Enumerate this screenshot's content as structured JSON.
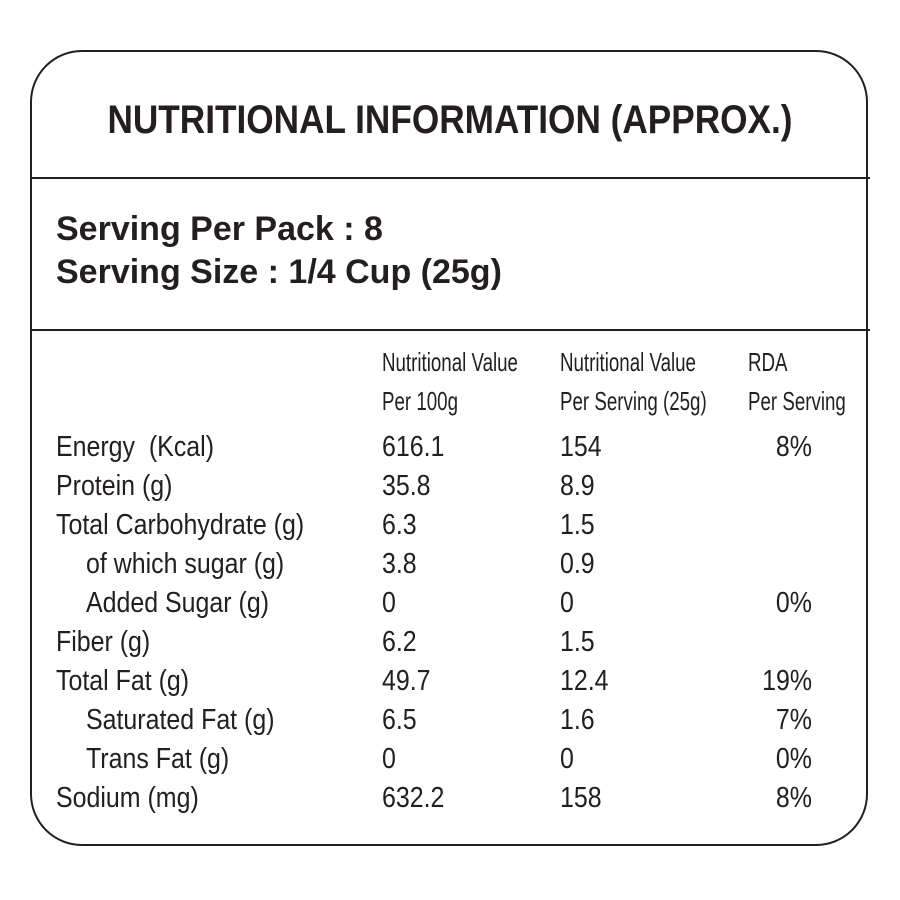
{
  "title": "NUTRITIONAL INFORMATION (APPROX.)",
  "serving": {
    "per_pack": "Serving Per Pack : 8",
    "size": "Serving Size : 1/4 Cup (25g)"
  },
  "table": {
    "headers": [
      [
        "Nutritional Value",
        "Per 100g"
      ],
      [
        "Nutritional Value",
        "Per Serving (25g)"
      ],
      [
        "RDA",
        "Per Serving"
      ]
    ],
    "rows": [
      {
        "label": "Energy  (Kcal)",
        "per_100g": "616.1",
        "per_serving": "154",
        "rda": "8%"
      },
      {
        "label": "Protein (g)",
        "per_100g": "35.8",
        "per_serving": "8.9"
      },
      {
        "label": "Total Carbohydrate (g)",
        "per_100g": "6.3",
        "per_serving": "1.5"
      },
      {
        "label": "of which sugar (g)",
        "per_100g": "3.8",
        "per_serving": "0.9"
      },
      {
        "label": "Added Sugar (g)",
        "per_100g": "0",
        "per_serving": "0",
        "rda": "0%"
      },
      {
        "label": "Fiber (g)",
        "per_100g": "6.2",
        "per_serving": "1.5"
      },
      {
        "label": "Total Fat (g)",
        "per_100g": "49.7",
        "per_serving": "12.4",
        "rda": "19%"
      },
      {
        "label": "Saturated Fat (g)",
        "per_100g": "6.5",
        "per_serving": "1.6",
        "rda": "7%"
      },
      {
        "label": "Trans Fat (g)",
        "per_100g": "0",
        "per_serving": "0",
        "rda": "0%"
      },
      {
        "label": "Sodium (mg)",
        "per_100g": "632.2",
        "per_serving": "158",
        "rda": "8%"
      }
    ]
  }
}
